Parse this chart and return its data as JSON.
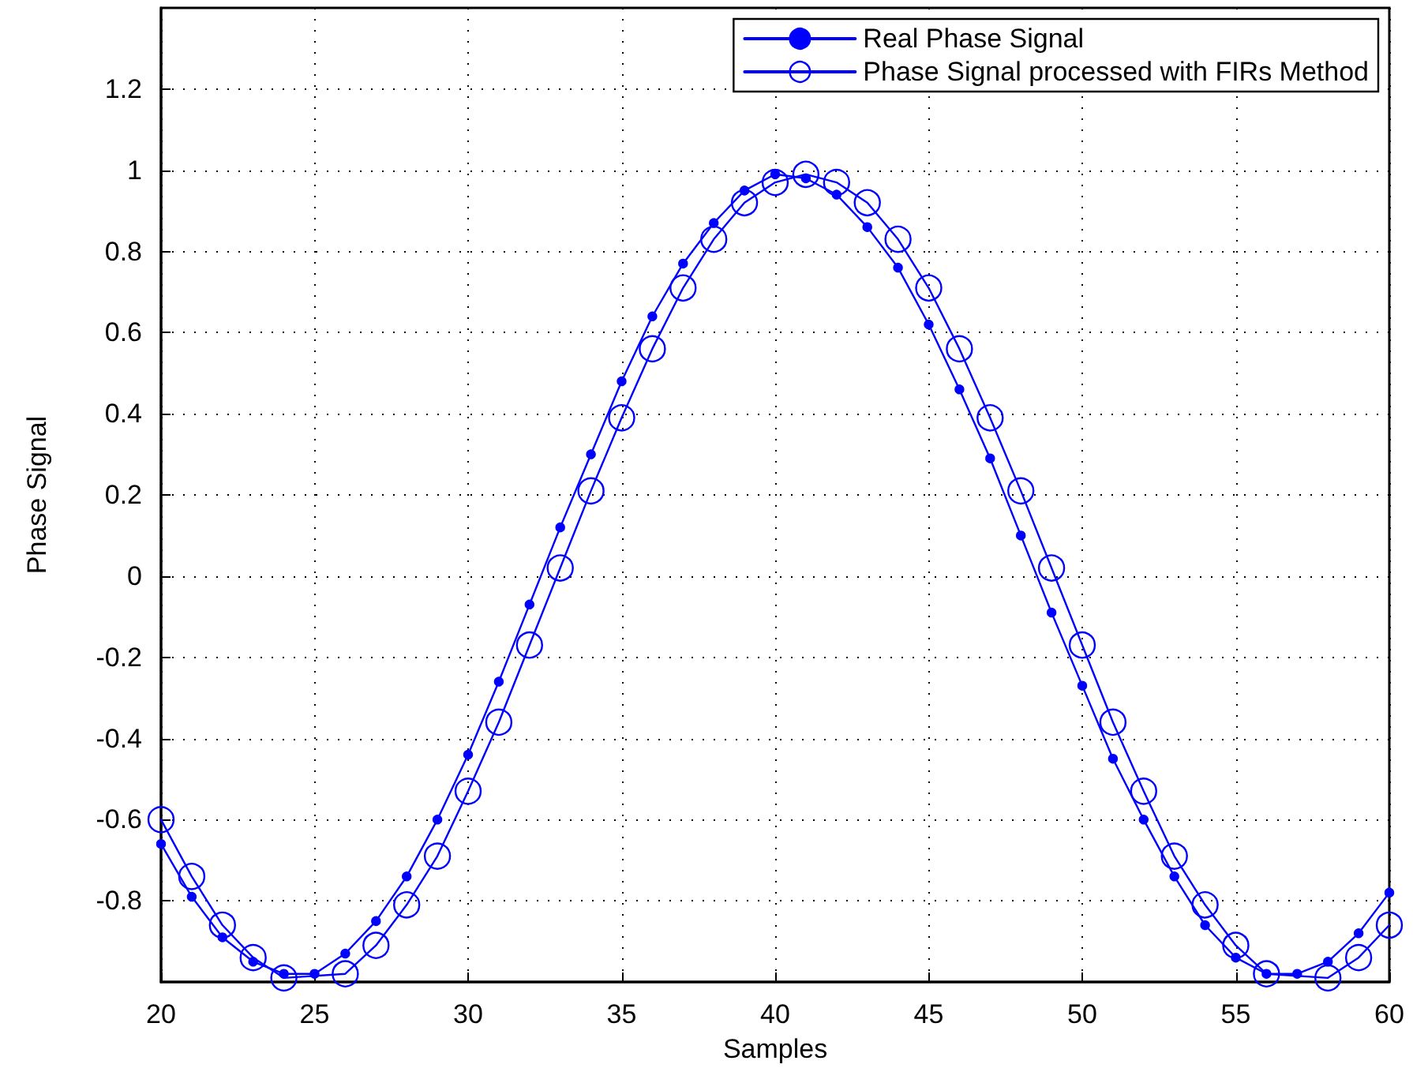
{
  "chart_data": {
    "type": "line",
    "xlabel": "Samples",
    "ylabel": "Phase Signal",
    "x": [
      20,
      21,
      22,
      23,
      24,
      25,
      26,
      27,
      28,
      29,
      30,
      31,
      32,
      33,
      34,
      35,
      36,
      37,
      38,
      39,
      40,
      41,
      42,
      43,
      44,
      45,
      46,
      47,
      48,
      49,
      50,
      51,
      52,
      53,
      54,
      55,
      56,
      57,
      58,
      59,
      60
    ],
    "series": [
      {
        "name": "Real Phase Signal",
        "color": "#0000ff",
        "marker": "circle",
        "values": [
          -0.66,
          -0.79,
          -0.89,
          -0.95,
          -0.98,
          -0.98,
          -0.93,
          -0.85,
          -0.74,
          -0.6,
          -0.44,
          -0.26,
          -0.07,
          0.12,
          0.3,
          0.48,
          0.64,
          0.77,
          0.87,
          0.95,
          0.99,
          0.98,
          0.94,
          0.86,
          0.76,
          0.62,
          0.46,
          0.29,
          0.1,
          -0.09,
          -0.27,
          -0.45,
          -0.6,
          -0.74,
          -0.86,
          -0.94,
          -0.98,
          -0.98,
          -0.95,
          -0.88,
          -0.78
        ]
      },
      {
        "name": "Phase Signal processed with FIRs Method",
        "color": "#0000ff",
        "marker": "circle-open",
        "values": [
          -0.6,
          -0.74,
          -0.86,
          -0.94,
          -0.99,
          null,
          -0.98,
          -0.91,
          -0.81,
          -0.69,
          -0.53,
          -0.36,
          -0.17,
          0.02,
          0.21,
          0.39,
          0.56,
          0.71,
          0.83,
          0.92,
          0.97,
          0.99,
          0.97,
          0.92,
          0.83,
          0.71,
          0.56,
          0.39,
          0.21,
          0.02,
          -0.17,
          -0.36,
          -0.53,
          -0.69,
          -0.81,
          -0.91,
          -0.98,
          null,
          -0.99,
          -0.94,
          -0.86
        ]
      }
    ],
    "xlim": [
      20,
      60
    ],
    "xticks": [
      20,
      25,
      30,
      35,
      40,
      45,
      50,
      55,
      60
    ],
    "ylim": [
      -1,
      1.4
    ],
    "yticks": [
      -0.8,
      -0.6,
      -0.4,
      -0.2,
      0,
      0.2,
      0.4,
      0.6,
      0.8,
      1,
      1.2
    ],
    "grid": true,
    "legend": "top right",
    "line_style": "solid"
  }
}
